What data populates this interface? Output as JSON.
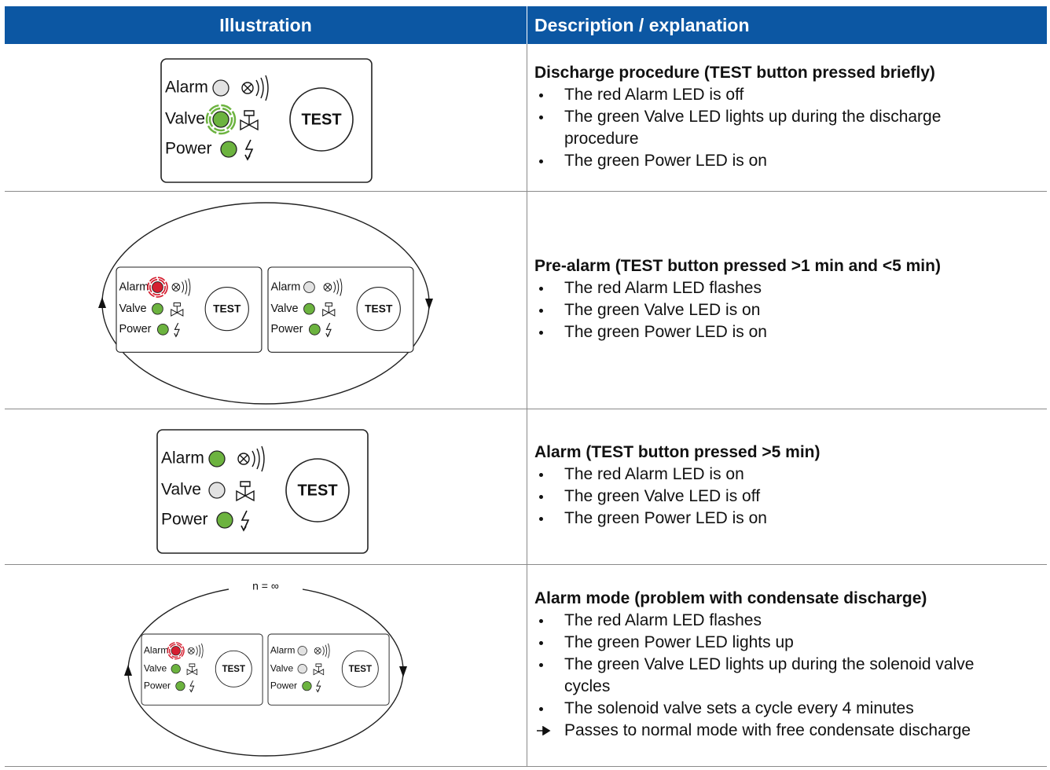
{
  "table": {
    "headers": [
      "Illustration",
      "Description / explanation"
    ],
    "panel": {
      "alarm": "Alarm",
      "valve": "Valve",
      "power": "Power",
      "button": "TEST"
    },
    "loop_label": "n = ∞",
    "rows": [
      {
        "title": "Discharge procedure (TEST button pressed briefly)",
        "items": [
          "The red Alarm LED is off",
          "The green Valve LED lights up during the discharge procedure",
          "The green Power LED is on"
        ]
      },
      {
        "title": "Pre-alarm (TEST button pressed >1 min and <5 min)",
        "items": [
          "The red Alarm LED flashes",
          "The green Valve LED is on",
          "The green Power LED is on"
        ]
      },
      {
        "title": "Alarm (TEST button pressed >5 min)",
        "items": [
          "The red Alarm LED is on",
          "The green Valve LED is off",
          "The green Power LED is on"
        ]
      },
      {
        "title": "Alarm mode (problem with condensate discharge)",
        "items": [
          "The red Alarm LED flashes",
          "The green Power LED lights up",
          "The green Valve LED lights up during the solenoid valve cycles",
          "The solenoid valve sets a cycle every 4 minutes"
        ],
        "note": "Passes to normal mode with free condensate discharge"
      }
    ]
  }
}
